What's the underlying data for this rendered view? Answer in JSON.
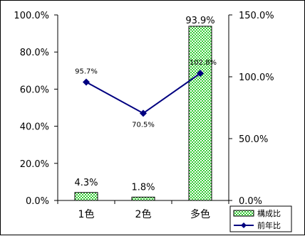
{
  "chart_data": {
    "type": "bar+line",
    "categories": [
      "1色",
      "2色",
      "多色"
    ],
    "series": [
      {
        "name": "構成比",
        "type": "bar",
        "axis": "left",
        "values": [
          4.3,
          1.8,
          93.9
        ],
        "labels": [
          "4.3%",
          "1.8%",
          "93.9%"
        ],
        "color": "#33cc33"
      },
      {
        "name": "前年比",
        "type": "line",
        "axis": "right",
        "values": [
          95.7,
          70.5,
          102.8
        ],
        "labels": [
          "95.7%",
          "70.5%",
          "102.8%"
        ],
        "color": "#000080"
      }
    ],
    "left_axis": {
      "min": 0,
      "max": 100,
      "step": 20,
      "ticks": [
        "0.0%",
        "20.0%",
        "40.0%",
        "60.0%",
        "80.0%",
        "100.0%"
      ]
    },
    "right_axis": {
      "min": 0,
      "max": 150,
      "step": 50,
      "ticks": [
        "0.0%",
        "50.0%",
        "100.0%",
        "150.0%"
      ]
    },
    "legend_position": "bottom-right",
    "grid": false
  }
}
